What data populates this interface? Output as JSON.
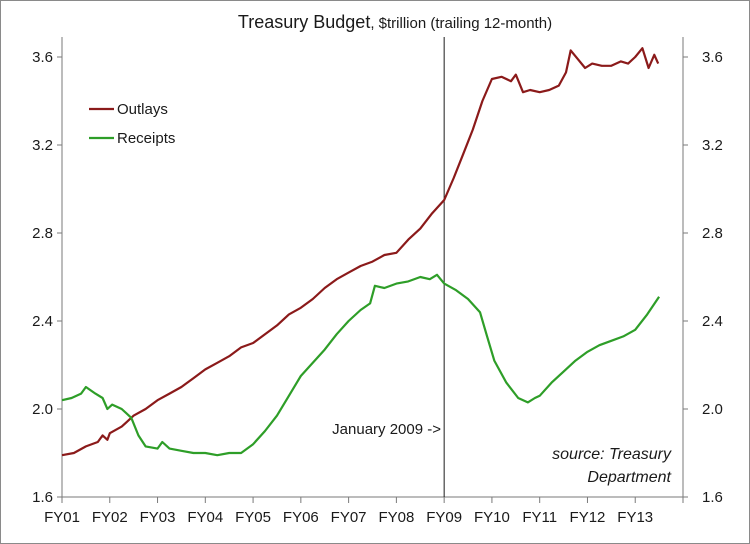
{
  "chart_data": {
    "type": "line",
    "title": "Treasury Budget",
    "title_suffix": ", $trillion (trailing 12-month)",
    "xlabel": "",
    "ylabel": "",
    "ylim": [
      1.6,
      3.6
    ],
    "y_ticks": [
      "1.6",
      "2.0",
      "2.4",
      "2.8",
      "3.2",
      "3.6"
    ],
    "y_ticks_right": [
      "1.6",
      "2.0",
      "2.4",
      "2.8",
      "3.2",
      "3.6"
    ],
    "categories": [
      "FY01",
      "FY02",
      "FY03",
      "FY04",
      "FY05",
      "FY06",
      "FY07",
      "FY08",
      "FY09",
      "FY10",
      "FY11",
      "FY12",
      "FY13"
    ],
    "grid": false,
    "legend_position": "top-left",
    "series": [
      {
        "name": "Outlays",
        "color": "#8b1a1a",
        "points": [
          [
            0.0,
            1.79
          ],
          [
            0.25,
            1.8
          ],
          [
            0.5,
            1.83
          ],
          [
            0.75,
            1.85
          ],
          [
            0.85,
            1.88
          ],
          [
            0.95,
            1.86
          ],
          [
            1.0,
            1.89
          ],
          [
            1.25,
            1.92
          ],
          [
            1.5,
            1.97
          ],
          [
            1.75,
            2.0
          ],
          [
            2.0,
            2.04
          ],
          [
            2.25,
            2.07
          ],
          [
            2.5,
            2.1
          ],
          [
            2.75,
            2.14
          ],
          [
            3.0,
            2.18
          ],
          [
            3.25,
            2.21
          ],
          [
            3.5,
            2.24
          ],
          [
            3.75,
            2.28
          ],
          [
            4.0,
            2.3
          ],
          [
            4.25,
            2.34
          ],
          [
            4.5,
            2.38
          ],
          [
            4.75,
            2.43
          ],
          [
            5.0,
            2.46
          ],
          [
            5.25,
            2.5
          ],
          [
            5.5,
            2.55
          ],
          [
            5.75,
            2.59
          ],
          [
            6.0,
            2.62
          ],
          [
            6.25,
            2.65
          ],
          [
            6.5,
            2.67
          ],
          [
            6.75,
            2.7
          ],
          [
            7.0,
            2.71
          ],
          [
            7.25,
            2.77
          ],
          [
            7.5,
            2.82
          ],
          [
            7.75,
            2.89
          ],
          [
            8.0,
            2.95
          ],
          [
            8.2,
            3.05
          ],
          [
            8.4,
            3.16
          ],
          [
            8.6,
            3.27
          ],
          [
            8.8,
            3.4
          ],
          [
            9.0,
            3.5
          ],
          [
            9.2,
            3.51
          ],
          [
            9.4,
            3.49
          ],
          [
            9.5,
            3.52
          ],
          [
            9.65,
            3.44
          ],
          [
            9.8,
            3.45
          ],
          [
            10.0,
            3.44
          ],
          [
            10.2,
            3.45
          ],
          [
            10.4,
            3.47
          ],
          [
            10.55,
            3.53
          ],
          [
            10.65,
            3.63
          ],
          [
            10.8,
            3.59
          ],
          [
            10.95,
            3.55
          ],
          [
            11.1,
            3.57
          ],
          [
            11.3,
            3.56
          ],
          [
            11.5,
            3.56
          ],
          [
            11.7,
            3.58
          ],
          [
            11.85,
            3.57
          ],
          [
            12.0,
            3.6
          ],
          [
            12.15,
            3.64
          ],
          [
            12.28,
            3.55
          ],
          [
            12.4,
            3.61
          ],
          [
            12.48,
            3.57
          ]
        ]
      },
      {
        "name": "Receipts",
        "color": "#2e9e28",
        "points": [
          [
            0.0,
            2.04
          ],
          [
            0.2,
            2.05
          ],
          [
            0.4,
            2.07
          ],
          [
            0.5,
            2.1
          ],
          [
            0.7,
            2.07
          ],
          [
            0.85,
            2.05
          ],
          [
            0.95,
            2.0
          ],
          [
            1.05,
            2.02
          ],
          [
            1.25,
            2.0
          ],
          [
            1.45,
            1.96
          ],
          [
            1.6,
            1.88
          ],
          [
            1.75,
            1.83
          ],
          [
            2.0,
            1.82
          ],
          [
            2.1,
            1.85
          ],
          [
            2.25,
            1.82
          ],
          [
            2.5,
            1.81
          ],
          [
            2.75,
            1.8
          ],
          [
            3.0,
            1.8
          ],
          [
            3.25,
            1.79
          ],
          [
            3.5,
            1.8
          ],
          [
            3.75,
            1.8
          ],
          [
            4.0,
            1.84
          ],
          [
            4.25,
            1.9
          ],
          [
            4.5,
            1.97
          ],
          [
            4.75,
            2.06
          ],
          [
            5.0,
            2.15
          ],
          [
            5.25,
            2.21
          ],
          [
            5.5,
            2.27
          ],
          [
            5.75,
            2.34
          ],
          [
            6.0,
            2.4
          ],
          [
            6.25,
            2.45
          ],
          [
            6.45,
            2.48
          ],
          [
            6.55,
            2.56
          ],
          [
            6.75,
            2.55
          ],
          [
            7.0,
            2.57
          ],
          [
            7.25,
            2.58
          ],
          [
            7.5,
            2.6
          ],
          [
            7.7,
            2.59
          ],
          [
            7.85,
            2.61
          ],
          [
            8.0,
            2.57
          ],
          [
            8.25,
            2.54
          ],
          [
            8.5,
            2.5
          ],
          [
            8.75,
            2.44
          ],
          [
            8.9,
            2.33
          ],
          [
            9.05,
            2.22
          ],
          [
            9.3,
            2.12
          ],
          [
            9.55,
            2.05
          ],
          [
            9.75,
            2.03
          ],
          [
            9.9,
            2.05
          ],
          [
            10.0,
            2.06
          ],
          [
            10.25,
            2.12
          ],
          [
            10.5,
            2.17
          ],
          [
            10.75,
            2.22
          ],
          [
            11.0,
            2.26
          ],
          [
            11.25,
            2.29
          ],
          [
            11.5,
            2.31
          ],
          [
            11.75,
            2.33
          ],
          [
            12.0,
            2.36
          ],
          [
            12.25,
            2.43
          ],
          [
            12.5,
            2.51
          ]
        ]
      }
    ],
    "annotations": [
      {
        "text": "January 2009 ->",
        "x": 8.0
      }
    ],
    "source_lines": [
      "source: Treasury",
      "Department"
    ]
  }
}
